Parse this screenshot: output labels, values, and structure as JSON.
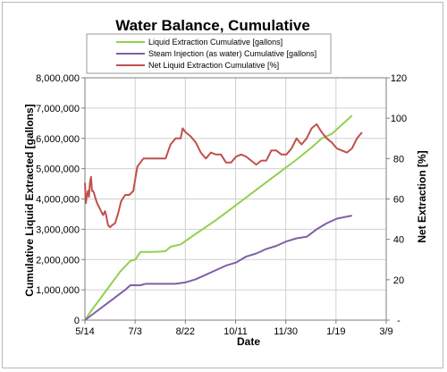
{
  "chart_data": {
    "type": "line",
    "title": "Water Balance, Cumulative",
    "xlabel": "Date",
    "ylabel": "Cumulative Liquid Extracted [gallons]",
    "y2label": "Net Extraction [%]",
    "x_tick_labels": [
      "5/14",
      "7/3",
      "8/22",
      "10/11",
      "11/30",
      "1/19",
      "3/9"
    ],
    "xlim": [
      0,
      299
    ],
    "y_tick_labels": [
      "0",
      "1,000,000",
      "2,000,000",
      "3,000,000",
      "4,000,000",
      "5,000,000",
      "6,000,000",
      "7,000,000",
      "8,000,000"
    ],
    "ylim": [
      0,
      8000000
    ],
    "y2_tick_labels": [
      "-",
      "20",
      "40",
      "60",
      "80",
      "100",
      "120"
    ],
    "y2lim": [
      0,
      120
    ],
    "grid": true,
    "legend_position": "top-center",
    "series": [
      {
        "name": "Liquid Extraction Cumulative  [gallons]",
        "axis": "left",
        "color": "#92d050",
        "points": [
          [
            0,
            0
          ],
          [
            5,
            250000
          ],
          [
            15,
            700000
          ],
          [
            25,
            1150000
          ],
          [
            35,
            1600000
          ],
          [
            45,
            1950000
          ],
          [
            50,
            2000000
          ],
          [
            55,
            2250000
          ],
          [
            65,
            2250000
          ],
          [
            75,
            2260000
          ],
          [
            80,
            2280000
          ],
          [
            85,
            2420000
          ],
          [
            95,
            2500000
          ],
          [
            110,
            2850000
          ],
          [
            130,
            3300000
          ],
          [
            150,
            3800000
          ],
          [
            170,
            4300000
          ],
          [
            190,
            4800000
          ],
          [
            210,
            5300000
          ],
          [
            225,
            5700000
          ],
          [
            235,
            6000000
          ],
          [
            245,
            6150000
          ],
          [
            255,
            6450000
          ],
          [
            265,
            6750000
          ]
        ]
      },
      {
        "name": "Steam Injection (as water) Cumulative  [gallons]",
        "axis": "left",
        "color": "#7f5fa6",
        "points": [
          [
            0,
            0
          ],
          [
            10,
            250000
          ],
          [
            20,
            500000
          ],
          [
            30,
            750000
          ],
          [
            40,
            1000000
          ],
          [
            45,
            1150000
          ],
          [
            55,
            1150000
          ],
          [
            60,
            1200000
          ],
          [
            90,
            1200000
          ],
          [
            100,
            1250000
          ],
          [
            110,
            1350000
          ],
          [
            130,
            1650000
          ],
          [
            140,
            1800000
          ],
          [
            150,
            1900000
          ],
          [
            160,
            2100000
          ],
          [
            170,
            2200000
          ],
          [
            180,
            2350000
          ],
          [
            190,
            2450000
          ],
          [
            200,
            2600000
          ],
          [
            210,
            2700000
          ],
          [
            220,
            2750000
          ],
          [
            230,
            3000000
          ],
          [
            240,
            3200000
          ],
          [
            250,
            3350000
          ],
          [
            265,
            3450000
          ]
        ]
      },
      {
        "name": "Net Liquid Extraction Cumulative  [%]",
        "axis": "right",
        "color": "#c0504d",
        "points": [
          [
            0,
            68
          ],
          [
            1,
            58
          ],
          [
            2,
            62
          ],
          [
            3,
            64
          ],
          [
            4,
            61
          ],
          [
            5,
            68
          ],
          [
            6,
            71
          ],
          [
            7,
            64
          ],
          [
            8,
            64
          ],
          [
            9,
            63
          ],
          [
            10,
            61
          ],
          [
            12,
            58
          ],
          [
            14,
            56
          ],
          [
            16,
            54
          ],
          [
            18,
            52
          ],
          [
            20,
            54
          ],
          [
            21,
            52
          ],
          [
            23,
            47
          ],
          [
            25,
            46
          ],
          [
            27,
            47
          ],
          [
            30,
            48
          ],
          [
            33,
            53
          ],
          [
            36,
            59
          ],
          [
            40,
            62
          ],
          [
            44,
            62
          ],
          [
            48,
            64
          ],
          [
            52,
            76
          ],
          [
            55,
            78
          ],
          [
            58,
            80
          ],
          [
            62,
            80
          ],
          [
            70,
            80
          ],
          [
            80,
            80
          ],
          [
            85,
            87
          ],
          [
            90,
            90
          ],
          [
            95,
            90
          ],
          [
            97,
            95
          ],
          [
            100,
            93
          ],
          [
            105,
            91
          ],
          [
            110,
            88
          ],
          [
            115,
            83
          ],
          [
            120,
            80
          ],
          [
            125,
            83
          ],
          [
            130,
            82
          ],
          [
            135,
            82
          ],
          [
            140,
            78
          ],
          [
            145,
            78
          ],
          [
            150,
            81
          ],
          [
            155,
            82
          ],
          [
            160,
            81
          ],
          [
            165,
            79
          ],
          [
            170,
            77
          ],
          [
            175,
            79
          ],
          [
            180,
            79
          ],
          [
            185,
            84
          ],
          [
            190,
            84
          ],
          [
            195,
            82
          ],
          [
            200,
            82
          ],
          [
            205,
            85
          ],
          [
            210,
            90
          ],
          [
            215,
            87
          ],
          [
            220,
            90
          ],
          [
            225,
            95
          ],
          [
            230,
            97
          ],
          [
            235,
            93
          ],
          [
            240,
            90
          ],
          [
            245,
            88
          ],
          [
            250,
            85
          ],
          [
            255,
            84
          ],
          [
            260,
            83
          ],
          [
            265,
            85
          ],
          [
            270,
            90
          ],
          [
            275,
            93
          ]
        ]
      }
    ]
  }
}
